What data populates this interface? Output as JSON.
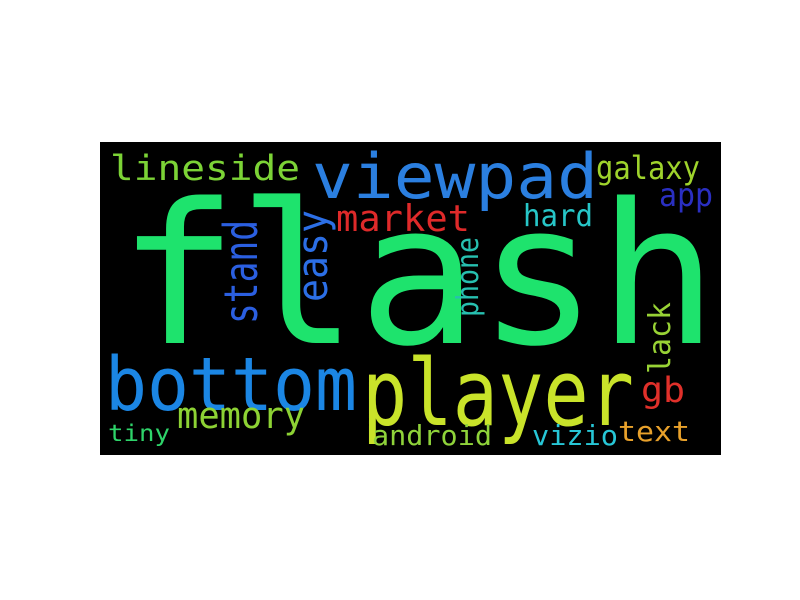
{
  "word_cloud": {
    "background": "#000000",
    "words": [
      {
        "text": "flash",
        "color": "#1ee36d",
        "orientation": "horizontal"
      },
      {
        "text": "player",
        "color": "#c9e32a",
        "orientation": "horizontal"
      },
      {
        "text": "viewpad",
        "color": "#2b7fe0",
        "orientation": "horizontal"
      },
      {
        "text": "bottom",
        "color": "#1b86e4",
        "orientation": "horizontal"
      },
      {
        "text": "lineside",
        "color": "#7cd336",
        "orientation": "horizontal"
      },
      {
        "text": "easy",
        "color": "#2c6fe6",
        "orientation": "vertical"
      },
      {
        "text": "stand",
        "color": "#2b5fe0",
        "orientation": "vertical"
      },
      {
        "text": "market",
        "color": "#df2a2a",
        "orientation": "horizontal"
      },
      {
        "text": "memory",
        "color": "#8dd234",
        "orientation": "horizontal"
      },
      {
        "text": "galaxy",
        "color": "#9fd42c",
        "orientation": "horizontal"
      },
      {
        "text": "app",
        "color": "#2a2fc2",
        "orientation": "horizontal"
      },
      {
        "text": "hard",
        "color": "#27c6c8",
        "orientation": "horizontal"
      },
      {
        "text": "phone",
        "color": "#27c0b0",
        "orientation": "vertical"
      },
      {
        "text": "lack",
        "color": "#98d235",
        "orientation": "vertical"
      },
      {
        "text": "gb",
        "color": "#e0302a",
        "orientation": "horizontal"
      },
      {
        "text": "text",
        "color": "#e8a12b",
        "orientation": "horizontal"
      },
      {
        "text": "vizio",
        "color": "#27c6d6",
        "orientation": "horizontal"
      },
      {
        "text": "android",
        "color": "#8fd33a",
        "orientation": "horizontal"
      },
      {
        "text": "tiny",
        "color": "#2ed46a",
        "orientation": "horizontal"
      }
    ]
  }
}
